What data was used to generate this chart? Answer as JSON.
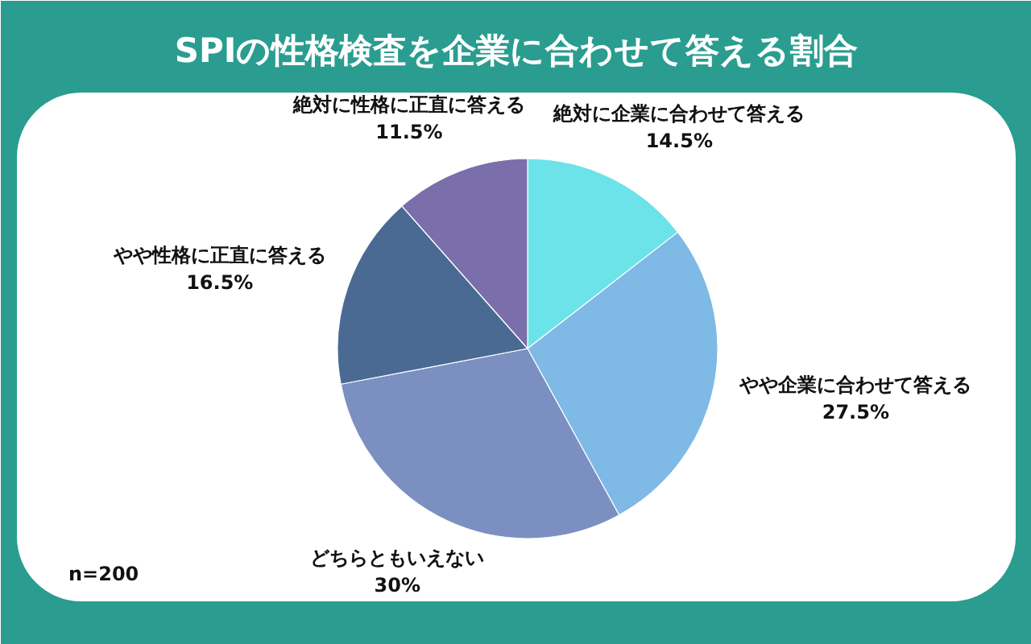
{
  "chart_data": {
    "type": "pie",
    "title": "SPIの性格検査を企業に合わせて答える割合",
    "categories": [
      "絶対に企業に合わせて答える",
      "やや企業に合わせて答える",
      "どちらともいえない",
      "やや性格に正直に答える",
      "絶対に性格に正直に答える"
    ],
    "values": [
      14.5,
      27.5,
      30,
      16.5,
      11.5
    ],
    "colors": [
      "#6be3e8",
      "#7fb9e6",
      "#7b90c1",
      "#4a6a94",
      "#7a6fab"
    ],
    "value_labels": [
      "14.5%",
      "27.5%",
      "30%",
      "16.5%",
      "11.5%"
    ],
    "annotations": [
      "n=200"
    ]
  }
}
